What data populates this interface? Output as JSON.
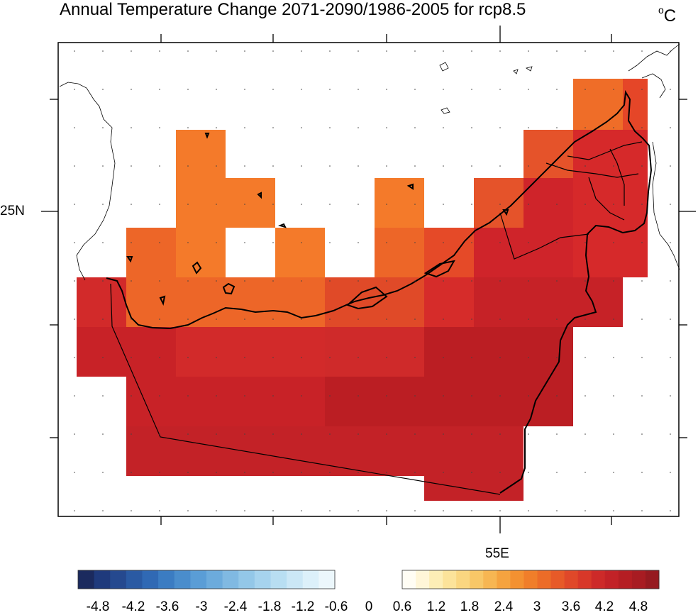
{
  "title": "Annual Temperature Change 2071-2090/1986-2005 for rcp8.5",
  "units": {
    "prefix": "o",
    "main": "C"
  },
  "axes": {
    "lat_label": "25N",
    "lon_label": "55E"
  },
  "colors": {
    "c1": "#f47a2a",
    "c2": "#ed6628",
    "c3": "#e54a28",
    "c4": "#d82a2a",
    "c5": "#c82227",
    "c6": "#bb1e23"
  },
  "colorbar": {
    "labels": [
      "-4.8",
      "-4.2",
      "-3.6",
      "-3",
      "-2.4",
      "-1.8",
      "-1.2",
      "-0.6",
      "0",
      "0.6",
      "1.2",
      "1.8",
      "2.4",
      "3",
      "3.6",
      "4.2",
      "4.8"
    ],
    "negative_colors": [
      "#1b2a5e",
      "#1f3a7c",
      "#25498f",
      "#2a5aa3",
      "#3069b4",
      "#3b7cc2",
      "#4a8dcc",
      "#5a9dd6",
      "#6cabdc",
      "#80b9e2",
      "#93c7e8",
      "#a6d3ee",
      "#b8def2",
      "#cbe7f6",
      "#dcf0fa",
      "#ecf7fc"
    ],
    "positive_colors": [
      "#fffdf4",
      "#fff6d8",
      "#fdeeb6",
      "#fce39a",
      "#fad680",
      "#f8c767",
      "#f7b652",
      "#f5a33f",
      "#f39131",
      "#f07e2a",
      "#ec6c28",
      "#e75a28",
      "#e04829",
      "#d83829",
      "#cd2a29",
      "#c22227",
      "#b51e23",
      "#a81c22",
      "#961a20"
    ]
  }
}
